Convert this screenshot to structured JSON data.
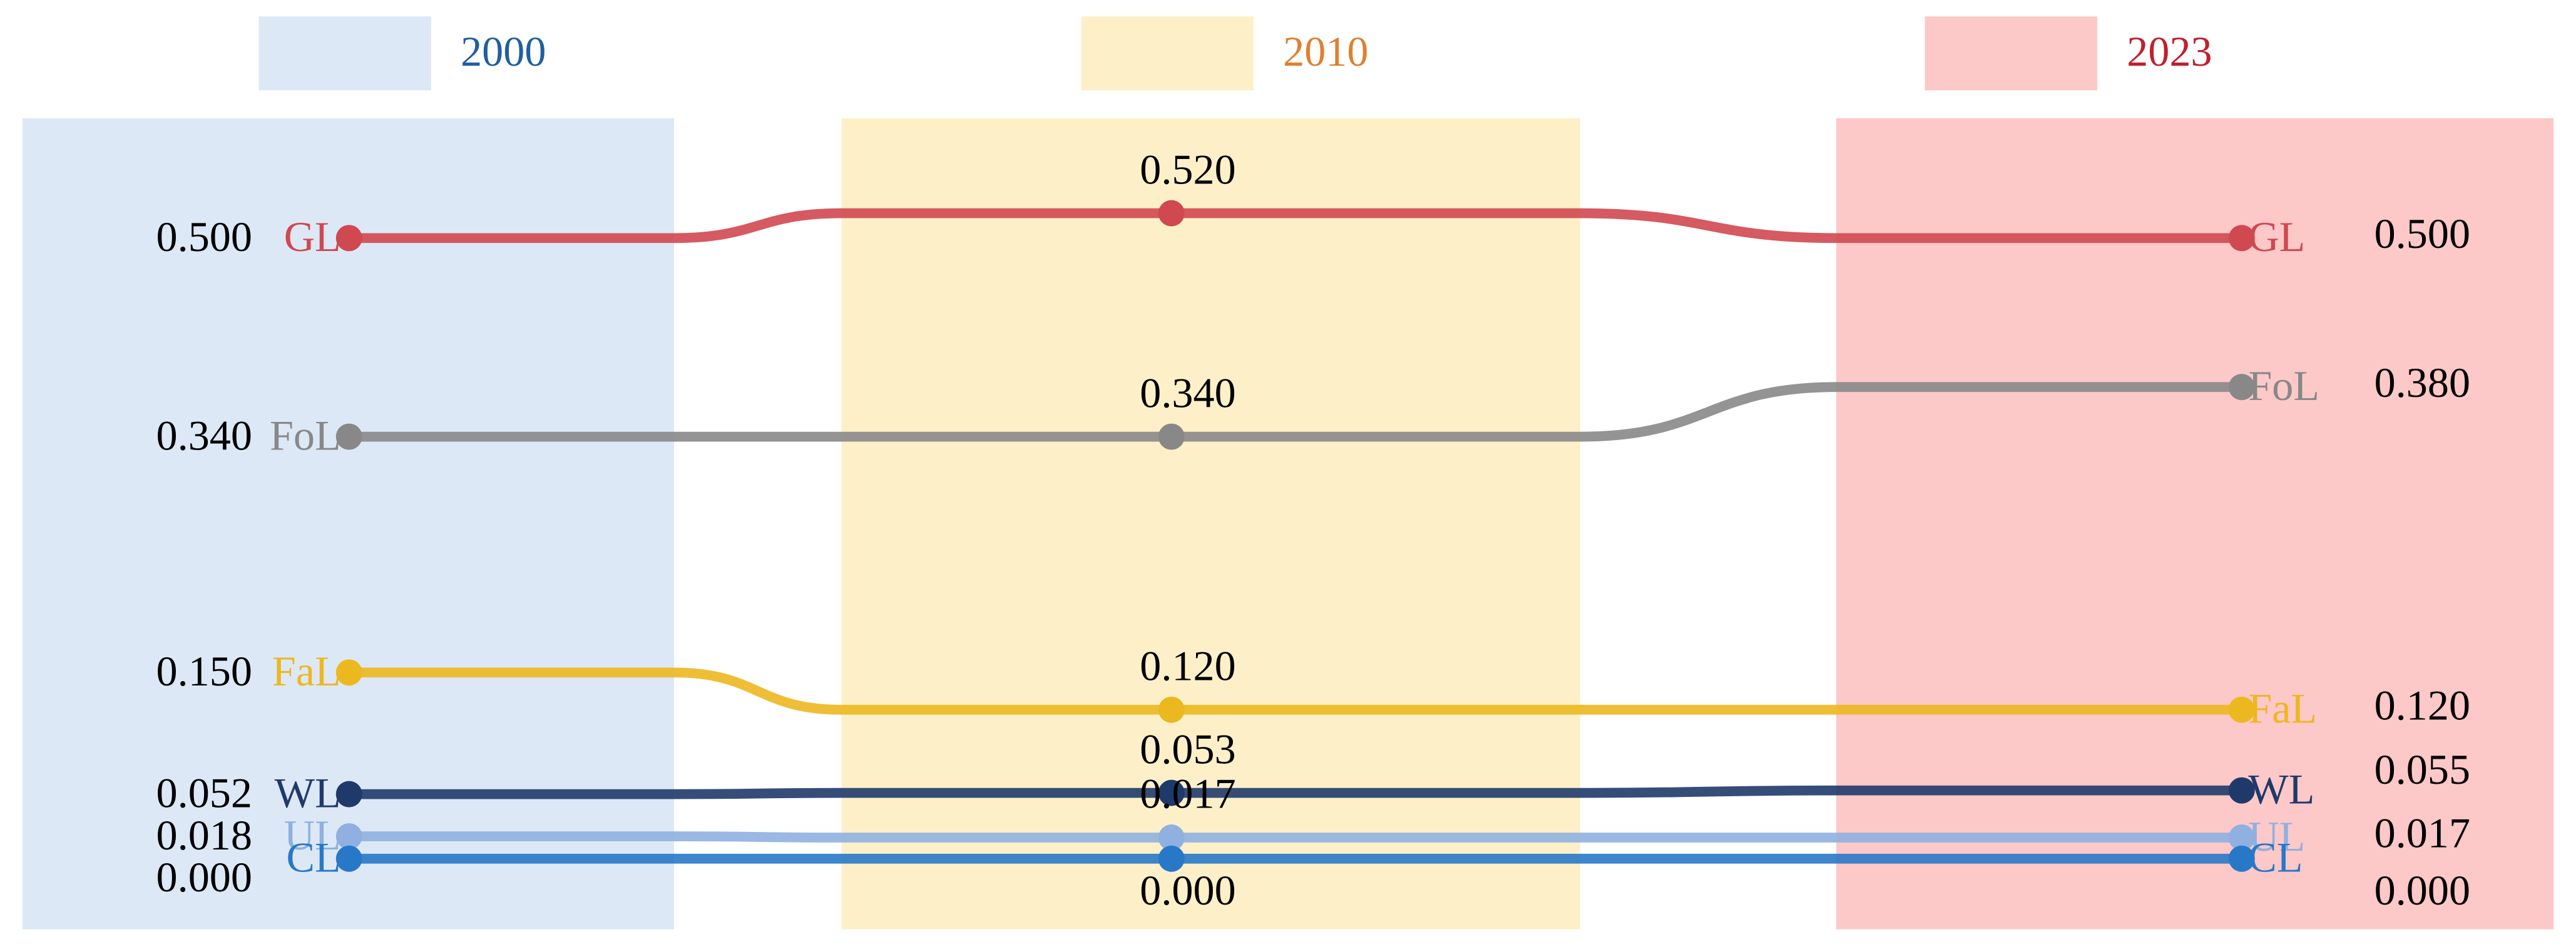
{
  "chart_data": {
    "type": "slope",
    "categories": [
      "2000",
      "2010",
      "2023"
    ],
    "category_colors": [
      "#1f5fa0",
      "#e08030",
      "#c0202e"
    ],
    "band_colors": [
      "#dde8f6",
      "#fdf0c8",
      "#fdc8c8"
    ],
    "series": [
      {
        "name": "GL",
        "color": "#d04850",
        "values": [
          0.5,
          0.52,
          0.5
        ],
        "value_labels": [
          "0.500",
          "0.520",
          "0.500"
        ]
      },
      {
        "name": "FoL",
        "color": "#888888",
        "values": [
          0.34,
          0.34,
          0.38
        ],
        "value_labels": [
          "0.340",
          "0.340",
          "0.380"
        ]
      },
      {
        "name": "FaL",
        "color": "#ecb820",
        "values": [
          0.15,
          0.12,
          0.12
        ],
        "value_labels": [
          "0.150",
          "0.120",
          "0.120"
        ]
      },
      {
        "name": "WL",
        "color": "#1f3a6a",
        "values": [
          0.052,
          0.053,
          0.055
        ],
        "value_labels": [
          "0.052",
          "0.053",
          "0.055"
        ]
      },
      {
        "name": "UL",
        "color": "#8fb0e0",
        "values": [
          0.018,
          0.017,
          0.017
        ],
        "value_labels": [
          "0.018",
          "0.017",
          "0.017"
        ]
      },
      {
        "name": "CL",
        "color": "#2878c8",
        "values": [
          0,
          0,
          0
        ],
        "value_labels": [
          "0.000",
          "0.000",
          "0.000"
        ]
      }
    ]
  }
}
